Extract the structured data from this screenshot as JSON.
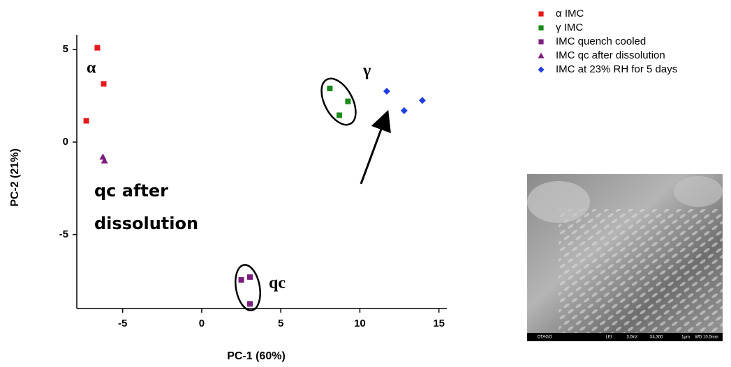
{
  "chart_data": {
    "type": "scatter",
    "xlabel": "PC-1 (60%)",
    "ylabel": "PC-2 (21%)",
    "xlim": [
      -7.9,
      15.5
    ],
    "ylim": [
      -9,
      5.8
    ],
    "xticks": [
      -5,
      0,
      5,
      10,
      15
    ],
    "yticks": [
      -5,
      0,
      5
    ],
    "series": [
      {
        "name": "α IMC",
        "color": "#e41a1c",
        "marker": "square",
        "x": [
          -6.6,
          -6.2,
          -7.3
        ],
        "values": [
          5.1,
          3.15,
          1.15
        ]
      },
      {
        "name": "γ IMC",
        "color": "#1a8a1a",
        "marker": "square",
        "x": [
          8.1,
          9.25,
          8.7
        ],
        "values": [
          2.9,
          2.2,
          1.45
        ]
      },
      {
        "name": "IMC quench cooled",
        "color": "#7b1f7f",
        "marker": "square",
        "x": [
          2.5,
          3.05,
          3.05
        ],
        "values": [
          -7.45,
          -7.3,
          -8.75
        ]
      },
      {
        "name": "IMC qc after dissolution",
        "color": "#7b1f7f",
        "marker": "triangle",
        "x": [
          -6.25,
          -6.15
        ],
        "values": [
          -0.8,
          -1.0
        ]
      },
      {
        "name": "IMC at 23% RH for 5 days",
        "color": "#1f3fdc",
        "marker": "diamond",
        "x": [
          11.7,
          12.8,
          13.95
        ],
        "values": [
          2.75,
          1.7,
          2.25
        ]
      }
    ],
    "annotations": {
      "alpha": "α",
      "gamma": "γ",
      "qc": "qc",
      "qc_after_dissolution": [
        "qc after",
        "dissolution"
      ]
    },
    "inset_text": [
      "OTAGO",
      "LEI",
      "3.0kV",
      "X4,300",
      "1μm",
      "WD 10.0mm"
    ]
  }
}
